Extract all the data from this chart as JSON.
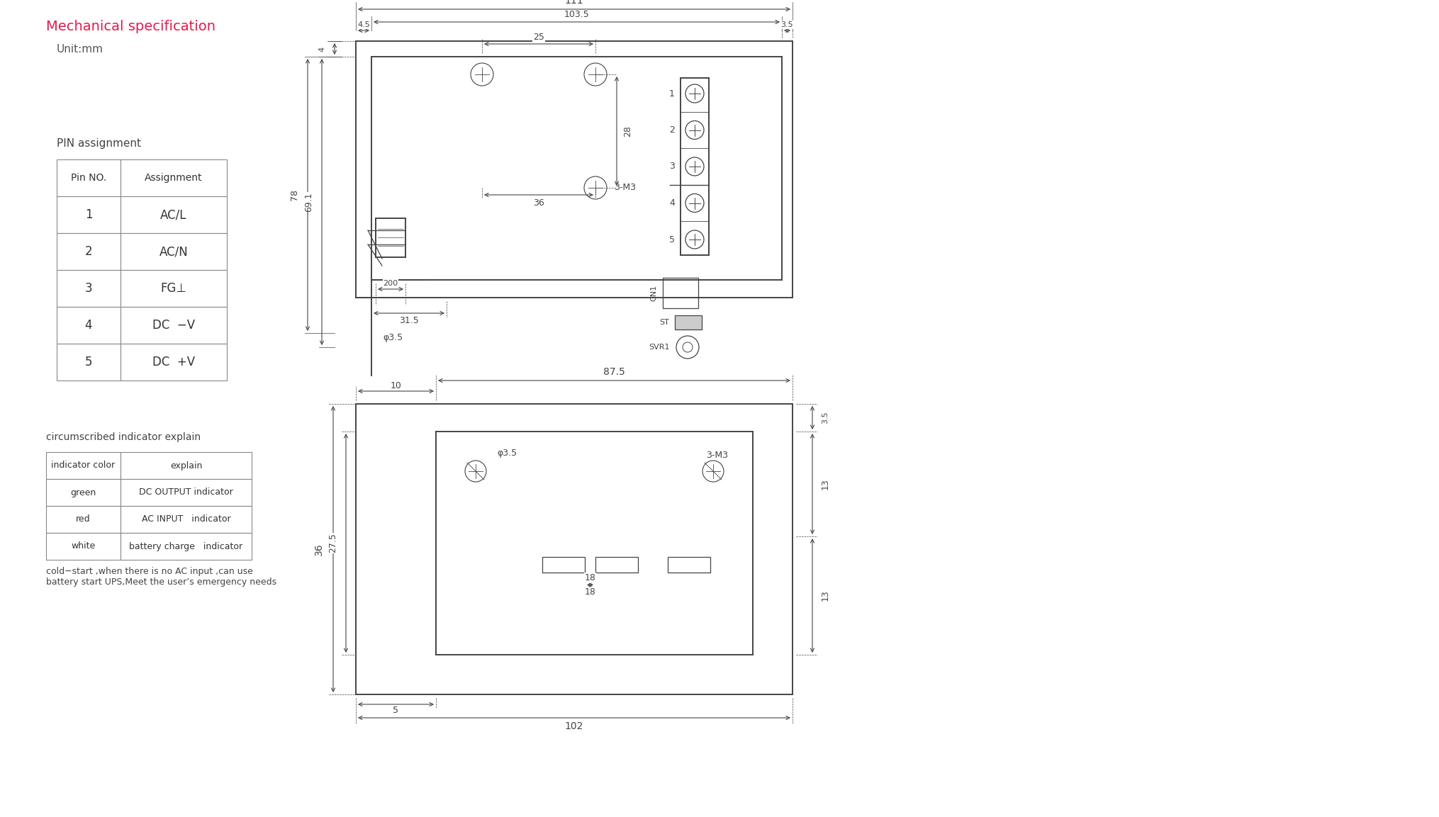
{
  "title": "Mechanical specification",
  "subtitle": "Unit:mm",
  "title_color": "#e8194b",
  "subtitle_color": "#555555",
  "line_color": "#444444",
  "dim_color": "#444444",
  "bg_color": "#ffffff",
  "pin_table_title": "PIN assignment",
  "pin_headers": [
    "Pin NO.",
    "Assignment"
  ],
  "pin_rows": [
    [
      "1",
      "AC/L"
    ],
    [
      "2",
      "AC/N"
    ],
    [
      "3",
      "FG⊥"
    ],
    [
      "4",
      "DC  −V"
    ],
    [
      "5",
      "DC  +V"
    ]
  ],
  "indicator_title": "circumscribed indicator explain",
  "indicator_headers": [
    "indicator color",
    "explain"
  ],
  "indicator_rows": [
    [
      "green",
      "DC OUTPUT indicator"
    ],
    [
      "red",
      "AC INPUT   indicator"
    ],
    [
      "white",
      "battery charge   indicator"
    ]
  ],
  "cold_start_text": "cold−start ,when there is no AC input ,can use\nbattery start UPS,Meet the user’s emergency needs"
}
